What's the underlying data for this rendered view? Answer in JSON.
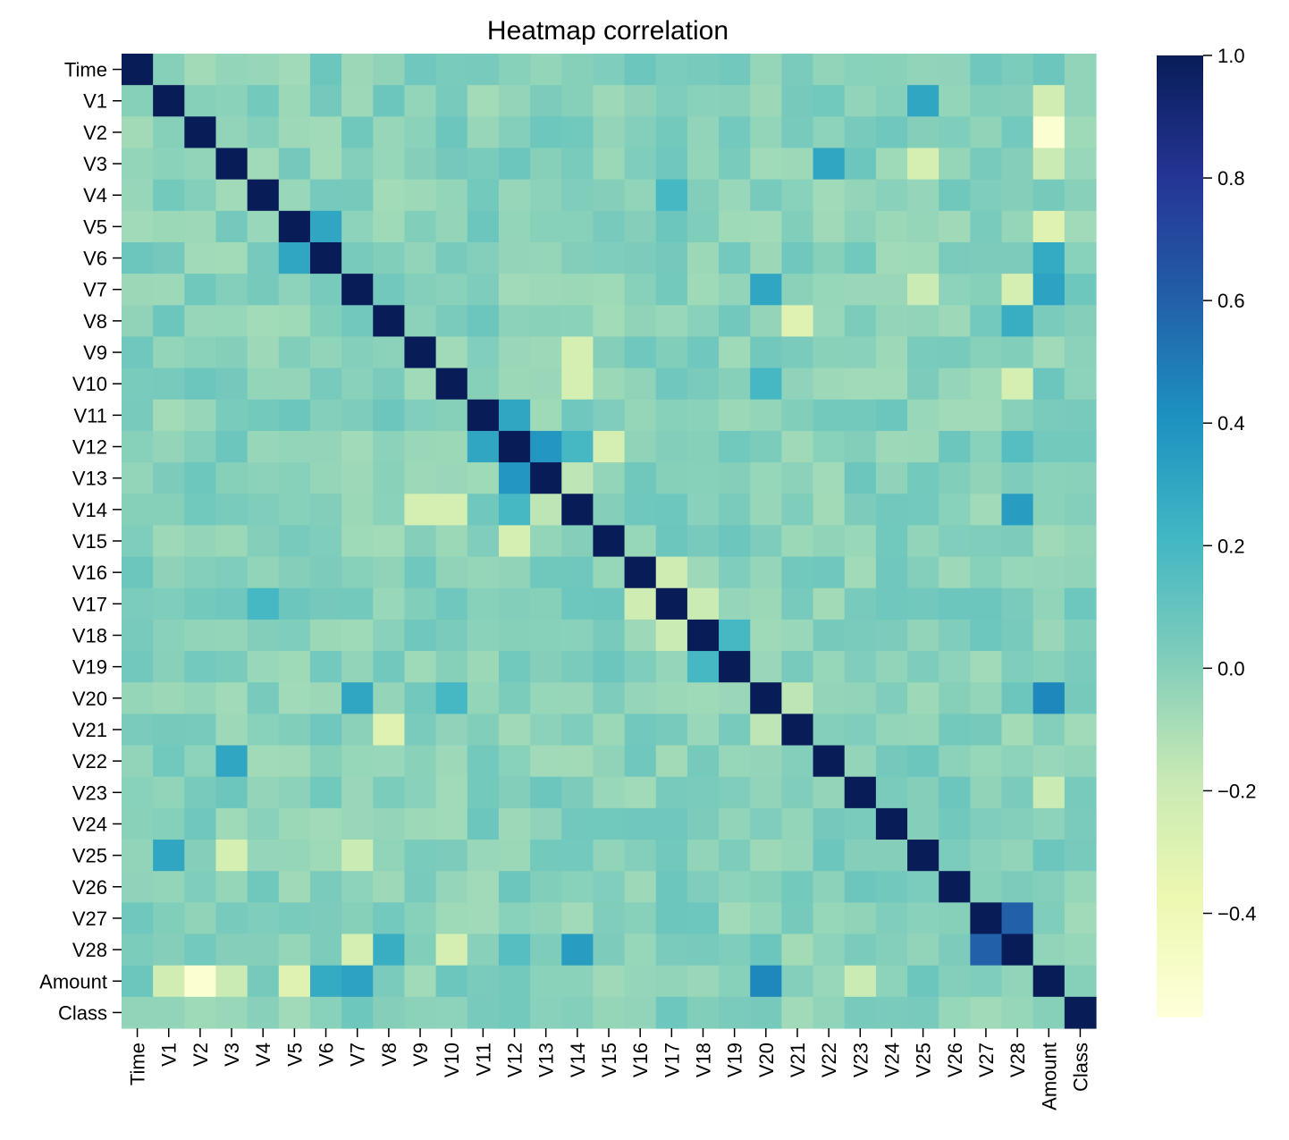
{
  "chart_data": {
    "type": "heatmap",
    "title": "Heatmap correlation",
    "labels": [
      "Time",
      "V1",
      "V2",
      "V3",
      "V4",
      "V5",
      "V6",
      "V7",
      "V8",
      "V9",
      "V10",
      "V11",
      "V12",
      "V13",
      "V14",
      "V15",
      "V16",
      "V17",
      "V18",
      "V19",
      "V20",
      "V21",
      "V22",
      "V23",
      "V24",
      "V25",
      "V26",
      "V27",
      "V28",
      "Amount",
      "Class"
    ],
    "value_range": [
      -0.57,
      1.0
    ],
    "colorbar_ticks": [
      {
        "value": 1.0,
        "label": "1.0"
      },
      {
        "value": 0.8,
        "label": "0.8"
      },
      {
        "value": 0.6,
        "label": "0.6"
      },
      {
        "value": 0.4,
        "label": "0.4"
      },
      {
        "value": 0.2,
        "label": "0.2"
      },
      {
        "value": 0.0,
        "label": "0.0"
      },
      {
        "value": -0.2,
        "label": "−0.2"
      },
      {
        "value": -0.4,
        "label": "−0.4"
      }
    ],
    "colormap": "YlGnBu",
    "colormap_stops": [
      "#ffffd9",
      "#edf8b1",
      "#c7e9b4",
      "#7fcdbb",
      "#41b6c4",
      "#1d91c0",
      "#225ea8",
      "#253494",
      "#081d58"
    ],
    "known_values": [
      [
        1,
        2,
        0.0
      ],
      [
        1,
        25,
        0.3
      ],
      [
        1,
        29,
        -0.23
      ],
      [
        2,
        29,
        -0.53
      ],
      [
        3,
        22,
        0.3
      ],
      [
        3,
        25,
        -0.25
      ],
      [
        3,
        29,
        -0.2
      ],
      [
        5,
        6,
        0.3
      ],
      [
        5,
        29,
        -0.3
      ],
      [
        6,
        29,
        0.28
      ],
      [
        7,
        20,
        0.3
      ],
      [
        7,
        29,
        0.32
      ],
      [
        7,
        28,
        -0.25
      ],
      [
        7,
        25,
        -0.2
      ],
      [
        8,
        21,
        -0.3
      ],
      [
        8,
        28,
        0.26
      ],
      [
        9,
        14,
        -0.25
      ],
      [
        10,
        14,
        -0.25
      ],
      [
        10,
        20,
        0.2
      ],
      [
        10,
        28,
        -0.25
      ],
      [
        11,
        12,
        0.3
      ],
      [
        12,
        13,
        0.38
      ],
      [
        12,
        15,
        -0.25
      ],
      [
        14,
        28,
        0.35
      ],
      [
        13,
        14,
        -0.15
      ],
      [
        16,
        17,
        -0.22
      ],
      [
        17,
        18,
        -0.2
      ],
      [
        20,
        21,
        -0.15
      ],
      [
        20,
        29,
        0.45
      ],
      [
        22,
        29,
        -0.05
      ],
      [
        23,
        29,
        -0.2
      ],
      [
        26,
        27,
        0.0
      ],
      [
        27,
        28,
        0.6
      ],
      [
        0,
        1,
        0.0
      ],
      [
        4,
        17,
        0.2
      ],
      [
        19,
        18,
        0.2
      ],
      [
        12,
        14,
        0.2
      ],
      [
        12,
        28,
        0.15
      ]
    ],
    "xlabel": "",
    "ylabel": ""
  }
}
